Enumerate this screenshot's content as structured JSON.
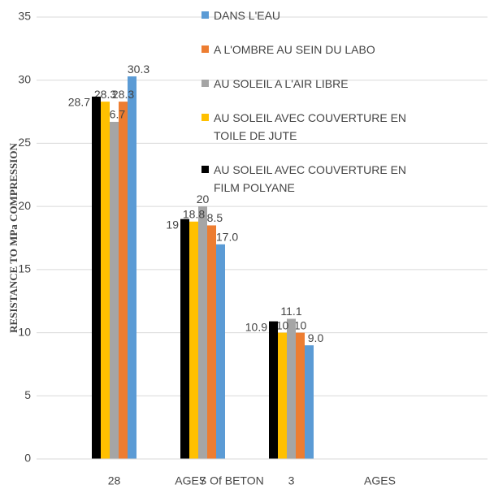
{
  "chart_data": {
    "type": "bar",
    "x_label": "AGES Of BETON",
    "y_label": "RESISTANCE TO MPa COMPRESSION",
    "categories": [
      "28",
      "7",
      "3",
      "AGES"
    ],
    "series": [
      {
        "name": "DANS L'EAU",
        "color": "#5b9bd5",
        "values": [
          30.3,
          17.0,
          9.0,
          null
        ],
        "value_labels": [
          "30.3",
          "17.0",
          "9.0",
          null
        ]
      },
      {
        "name": "A L'OMBRE AU SEIN DU LABO",
        "color": "#ed7d31",
        "values": [
          28.3,
          18.5,
          10,
          null
        ]
      },
      {
        "name": "AU SOLEIL A L'AIR LIBRE",
        "color": "#a5a5a5",
        "values": [
          26.7,
          20,
          11.1,
          null
        ]
      },
      {
        "name": "AU SOLEIL AVEC COUVERTURE EN TOILE DE JUTE",
        "color": "#ffc000",
        "values": [
          28.3,
          18.8,
          10,
          null
        ]
      },
      {
        "name": "AU SOLEIL AVEC COUVERTURE EN FILM POLYANE",
        "color": "#000000",
        "values": [
          28.7,
          19,
          10.9,
          null
        ]
      }
    ],
    "ylim": [
      0,
      35
    ],
    "yticks": [
      0,
      5,
      10,
      15,
      20,
      25,
      30,
      35
    ],
    "grid": true
  }
}
